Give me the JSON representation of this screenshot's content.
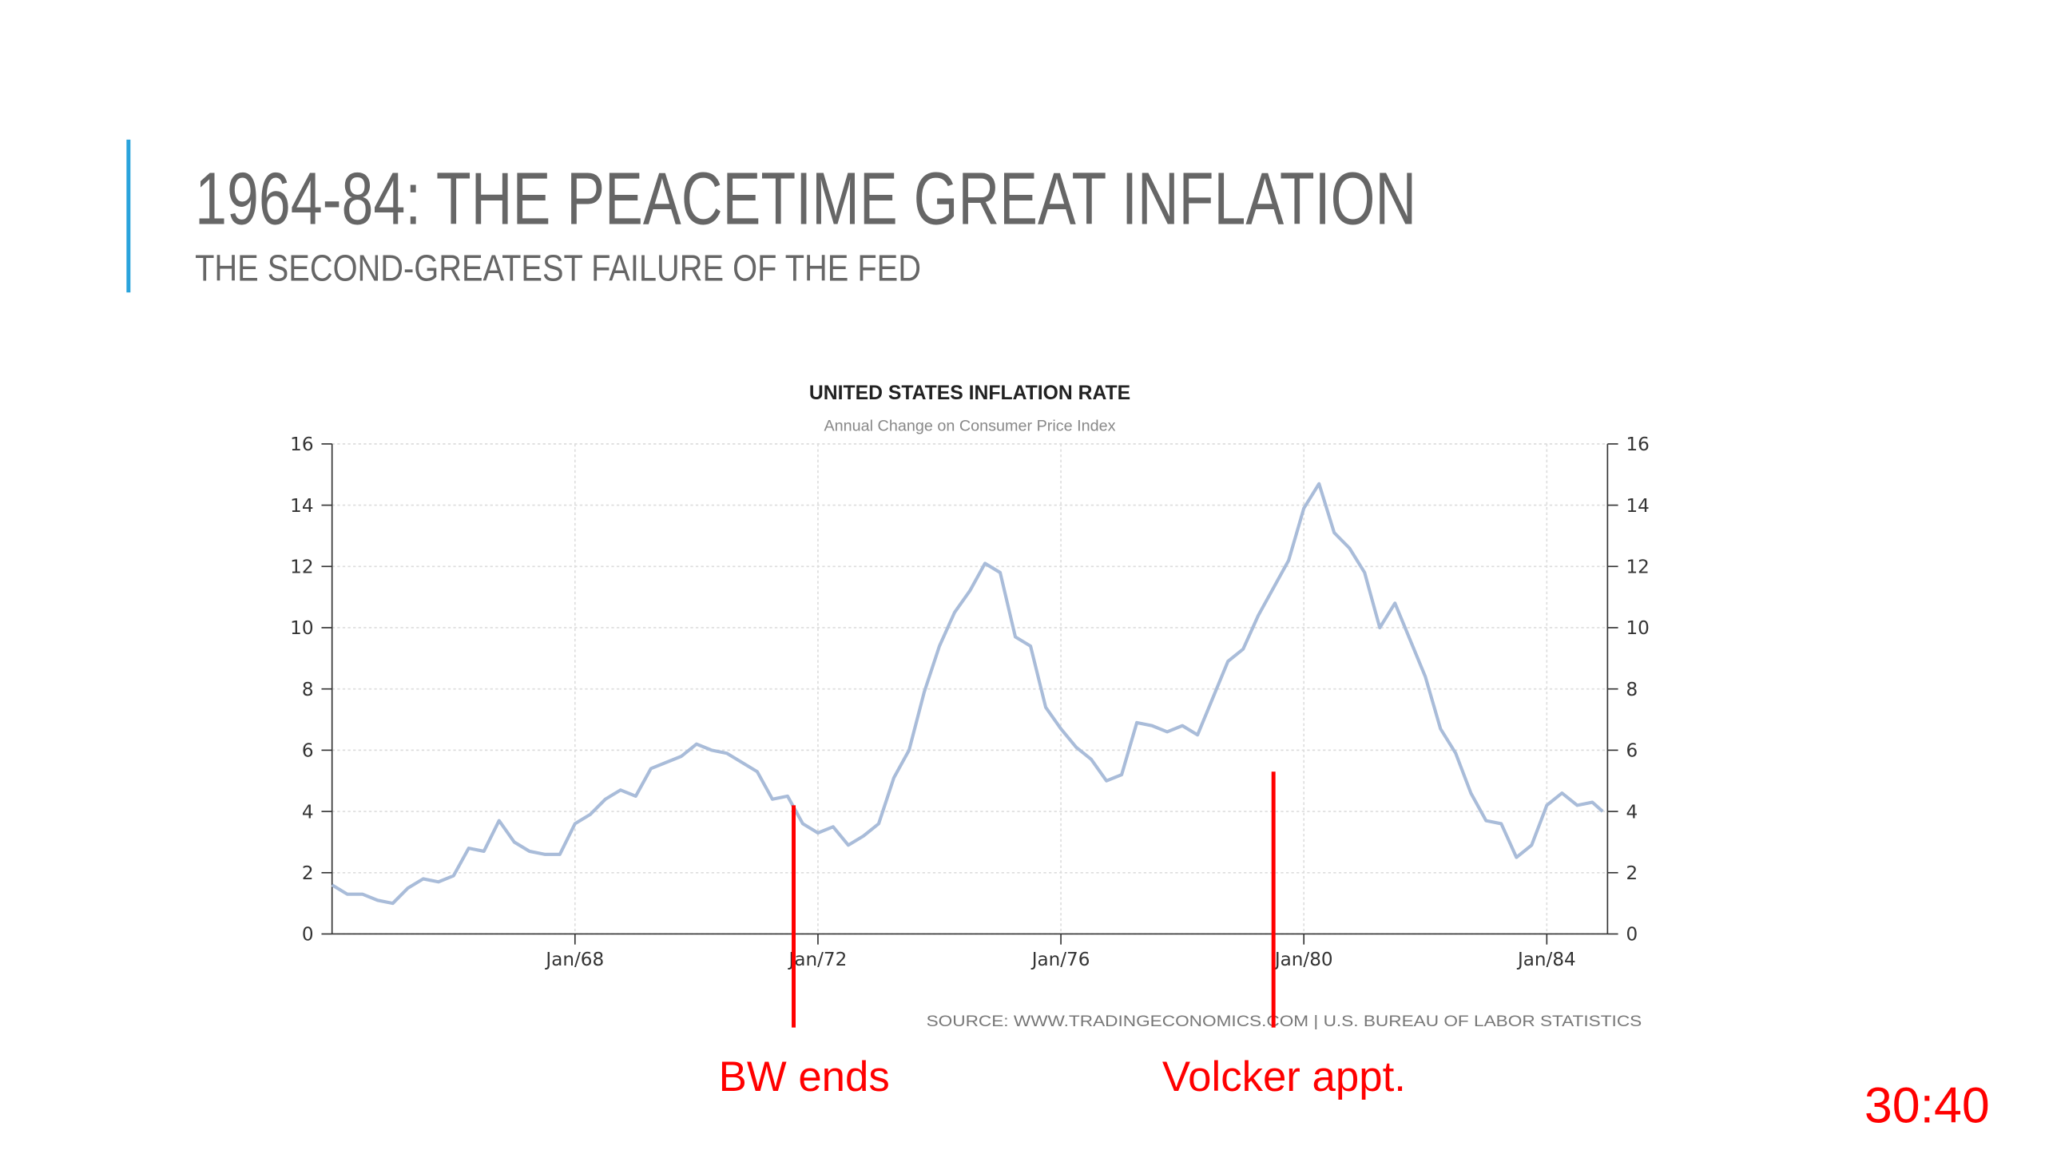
{
  "slide": {
    "title": "1964-84: THE PEACETIME GREAT INFLATION",
    "subtitle": "THE SECOND-GREATEST FAILURE OF THE FED",
    "timer": "30:40"
  },
  "chart_data": {
    "type": "line",
    "title": "UNITED STATES INFLATION RATE",
    "subtitle": "Annual Change on Consumer Price Index",
    "source": "SOURCE: WWW.TRADINGECONOMICS.COM  |  U.S. BUREAU OF LABOR STATISTICS",
    "x": [
      1964,
      1964.25,
      1964.5,
      1964.75,
      1965,
      1965.25,
      1965.5,
      1965.75,
      1966,
      1966.25,
      1966.5,
      1966.75,
      1967,
      1967.25,
      1967.5,
      1967.75,
      1968,
      1968.25,
      1968.5,
      1968.75,
      1969,
      1969.25,
      1969.5,
      1969.75,
      1970,
      1970.25,
      1970.5,
      1970.75,
      1971,
      1971.25,
      1971.5,
      1971.75,
      1972,
      1972.25,
      1972.5,
      1972.75,
      1973,
      1973.25,
      1973.5,
      1973.75,
      1974,
      1974.25,
      1974.5,
      1974.75,
      1975,
      1975.25,
      1975.5,
      1975.75,
      1976,
      1976.25,
      1976.5,
      1976.75,
      1977,
      1977.25,
      1977.5,
      1977.75,
      1978,
      1978.25,
      1978.5,
      1978.75,
      1979,
      1979.25,
      1979.5,
      1979.75,
      1980,
      1980.25,
      1980.5,
      1980.75,
      1981,
      1981.25,
      1981.5,
      1981.75,
      1982,
      1982.25,
      1982.5,
      1982.75,
      1983,
      1983.25,
      1983.5,
      1983.75,
      1984,
      1984.25,
      1984.5,
      1984.75,
      1984.92
    ],
    "series": [
      {
        "name": "Inflation rate",
        "color": "#a9bcd9",
        "values": [
          1.6,
          1.3,
          1.3,
          1.1,
          1.0,
          1.5,
          1.8,
          1.7,
          1.9,
          2.8,
          2.7,
          3.7,
          3.0,
          2.7,
          2.6,
          2.6,
          3.6,
          3.9,
          4.4,
          4.7,
          4.5,
          5.4,
          5.6,
          5.8,
          6.2,
          6.0,
          5.9,
          5.6,
          5.3,
          4.4,
          4.5,
          3.6,
          3.3,
          3.5,
          2.9,
          3.2,
          3.6,
          5.1,
          6.0,
          7.9,
          9.4,
          10.5,
          11.2,
          12.1,
          11.8,
          9.7,
          9.4,
          7.4,
          6.7,
          6.1,
          5.7,
          5.0,
          5.2,
          6.9,
          6.8,
          6.6,
          6.8,
          6.5,
          7.7,
          8.9,
          9.3,
          10.4,
          11.3,
          12.2,
          13.9,
          14.7,
          13.1,
          12.6,
          11.8,
          10.0,
          10.8,
          9.6,
          8.4,
          6.7,
          5.9,
          4.6,
          3.7,
          3.6,
          2.5,
          2.9,
          4.2,
          4.6,
          4.2,
          4.3,
          4.0
        ]
      }
    ],
    "xlim": [
      1964,
      1985
    ],
    "xticks": [
      {
        "value": 1968,
        "label": "Jan/68"
      },
      {
        "value": 1972,
        "label": "Jan/72"
      },
      {
        "value": 1976,
        "label": "Jan/76"
      },
      {
        "value": 1980,
        "label": "Jan/80"
      },
      {
        "value": 1984,
        "label": "Jan/84"
      }
    ],
    "ylim": [
      0,
      16
    ],
    "yticks": [
      0,
      2,
      4,
      6,
      8,
      10,
      12,
      14,
      16
    ],
    "grid": true,
    "annotations": [
      {
        "label": "BW ends",
        "x": 1971.6,
        "y": 4.2,
        "color": "#ff0000"
      },
      {
        "label": "Volcker appt.",
        "x": 1979.5,
        "y": 5.3,
        "color": "#ff0000"
      }
    ]
  }
}
